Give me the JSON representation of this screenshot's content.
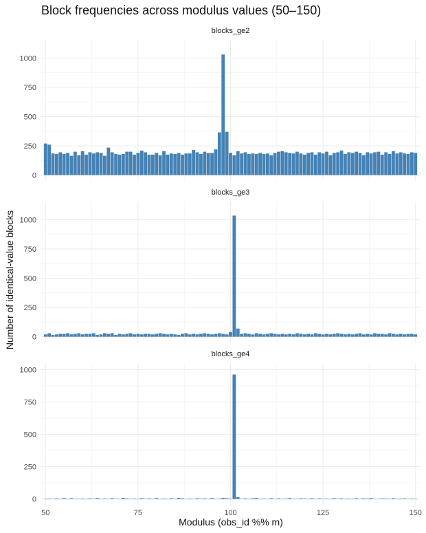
{
  "chart_data": {
    "type": "bar",
    "title": "Block frequencies across modulus values (50–150)",
    "xlabel": "Modulus (obs_id %% m)",
    "ylabel": "Number of identical-value blocks",
    "xlim": [
      50,
      150
    ],
    "x_ticks": [
      "50",
      "75",
      "100",
      "125",
      "150"
    ],
    "grid": true,
    "bar_color": "#4682B4",
    "x": [
      50,
      51,
      52,
      53,
      54,
      55,
      56,
      57,
      58,
      59,
      60,
      61,
      62,
      63,
      64,
      65,
      66,
      67,
      68,
      69,
      70,
      71,
      72,
      73,
      74,
      75,
      76,
      77,
      78,
      79,
      80,
      81,
      82,
      83,
      84,
      85,
      86,
      87,
      88,
      89,
      90,
      91,
      92,
      93,
      94,
      95,
      96,
      97,
      98,
      99,
      100,
      101,
      102,
      103,
      104,
      105,
      106,
      107,
      108,
      109,
      110,
      111,
      112,
      113,
      114,
      115,
      116,
      117,
      118,
      119,
      120,
      121,
      122,
      123,
      124,
      125,
      126,
      127,
      128,
      129,
      130,
      131,
      132,
      133,
      134,
      135,
      136,
      137,
      138,
      139,
      140,
      141,
      142,
      143,
      144,
      145,
      146,
      147,
      148,
      149,
      150
    ],
    "panels": [
      {
        "name": "blocks_ge2",
        "ylim": [
          0,
          1100
        ],
        "y_ticks": [
          "0",
          "250",
          "500",
          "750",
          "1000"
        ],
        "values": [
          270,
          260,
          185,
          180,
          195,
          180,
          190,
          165,
          200,
          170,
          205,
          175,
          195,
          185,
          195,
          190,
          165,
          235,
          195,
          180,
          175,
          180,
          200,
          200,
          175,
          190,
          210,
          195,
          175,
          175,
          190,
          170,
          205,
          175,
          185,
          180,
          190,
          175,
          185,
          185,
          215,
          195,
          180,
          200,
          190,
          190,
          220,
          365,
          1030,
          370,
          190,
          170,
          205,
          185,
          195,
          180,
          185,
          180,
          190,
          180,
          185,
          170,
          190,
          200,
          205,
          195,
          190,
          185,
          200,
          185,
          175,
          190,
          195,
          175,
          195,
          185,
          200,
          170,
          190,
          195,
          210,
          180,
          195,
          190,
          200,
          190,
          170,
          195,
          185,
          195,
          200,
          175,
          195,
          180,
          205,
          185,
          195,
          185,
          180,
          195,
          190
        ]
      },
      {
        "name": "blocks_ge3",
        "ylim": [
          0,
          1100
        ],
        "y_ticks": [
          "0",
          "250",
          "500",
          "750",
          "1000"
        ],
        "values": [
          20,
          30,
          15,
          20,
          25,
          25,
          30,
          20,
          25,
          30,
          20,
          25,
          25,
          30,
          15,
          20,
          30,
          25,
          30,
          15,
          25,
          20,
          25,
          30,
          20,
          25,
          20,
          25,
          25,
          20,
          25,
          30,
          25,
          20,
          25,
          20,
          15,
          25,
          30,
          20,
          25,
          20,
          25,
          30,
          25,
          20,
          25,
          30,
          25,
          20,
          40,
          1035,
          70,
          25,
          30,
          25,
          20,
          30,
          25,
          20,
          25,
          30,
          25,
          20,
          25,
          20,
          25,
          20,
          30,
          25,
          20,
          25,
          20,
          30,
          25,
          20,
          25,
          20,
          25,
          30,
          25,
          20,
          25,
          20,
          25,
          30,
          20,
          25,
          20,
          30,
          25,
          25,
          20,
          30,
          25,
          20,
          25,
          20,
          25,
          25,
          20
        ]
      },
      {
        "name": "blocks_ge4",
        "ylim": [
          0,
          1000
        ],
        "y_ticks": [
          "0",
          "250",
          "500",
          "750",
          "1000"
        ],
        "values": [
          2,
          4,
          3,
          5,
          2,
          7,
          3,
          6,
          2,
          3,
          4,
          2,
          5,
          3,
          7,
          2,
          4,
          3,
          6,
          2,
          3,
          8,
          5,
          2,
          4,
          3,
          6,
          2,
          5,
          3,
          7,
          2,
          4,
          3,
          6,
          2,
          8,
          5,
          3,
          4,
          2,
          6,
          3,
          5,
          2,
          7,
          3,
          4,
          8,
          6,
          4,
          962,
          14,
          3,
          5,
          2,
          6,
          8,
          3,
          4,
          2,
          6,
          3,
          5,
          2,
          4,
          7,
          3,
          2,
          5,
          4,
          2,
          6,
          3,
          5,
          2,
          4,
          3,
          6,
          2,
          5,
          3,
          4,
          2,
          6,
          3,
          5,
          4,
          7,
          3,
          2,
          5,
          4,
          3,
          6,
          2,
          4,
          5,
          3,
          4,
          3
        ]
      }
    ]
  }
}
